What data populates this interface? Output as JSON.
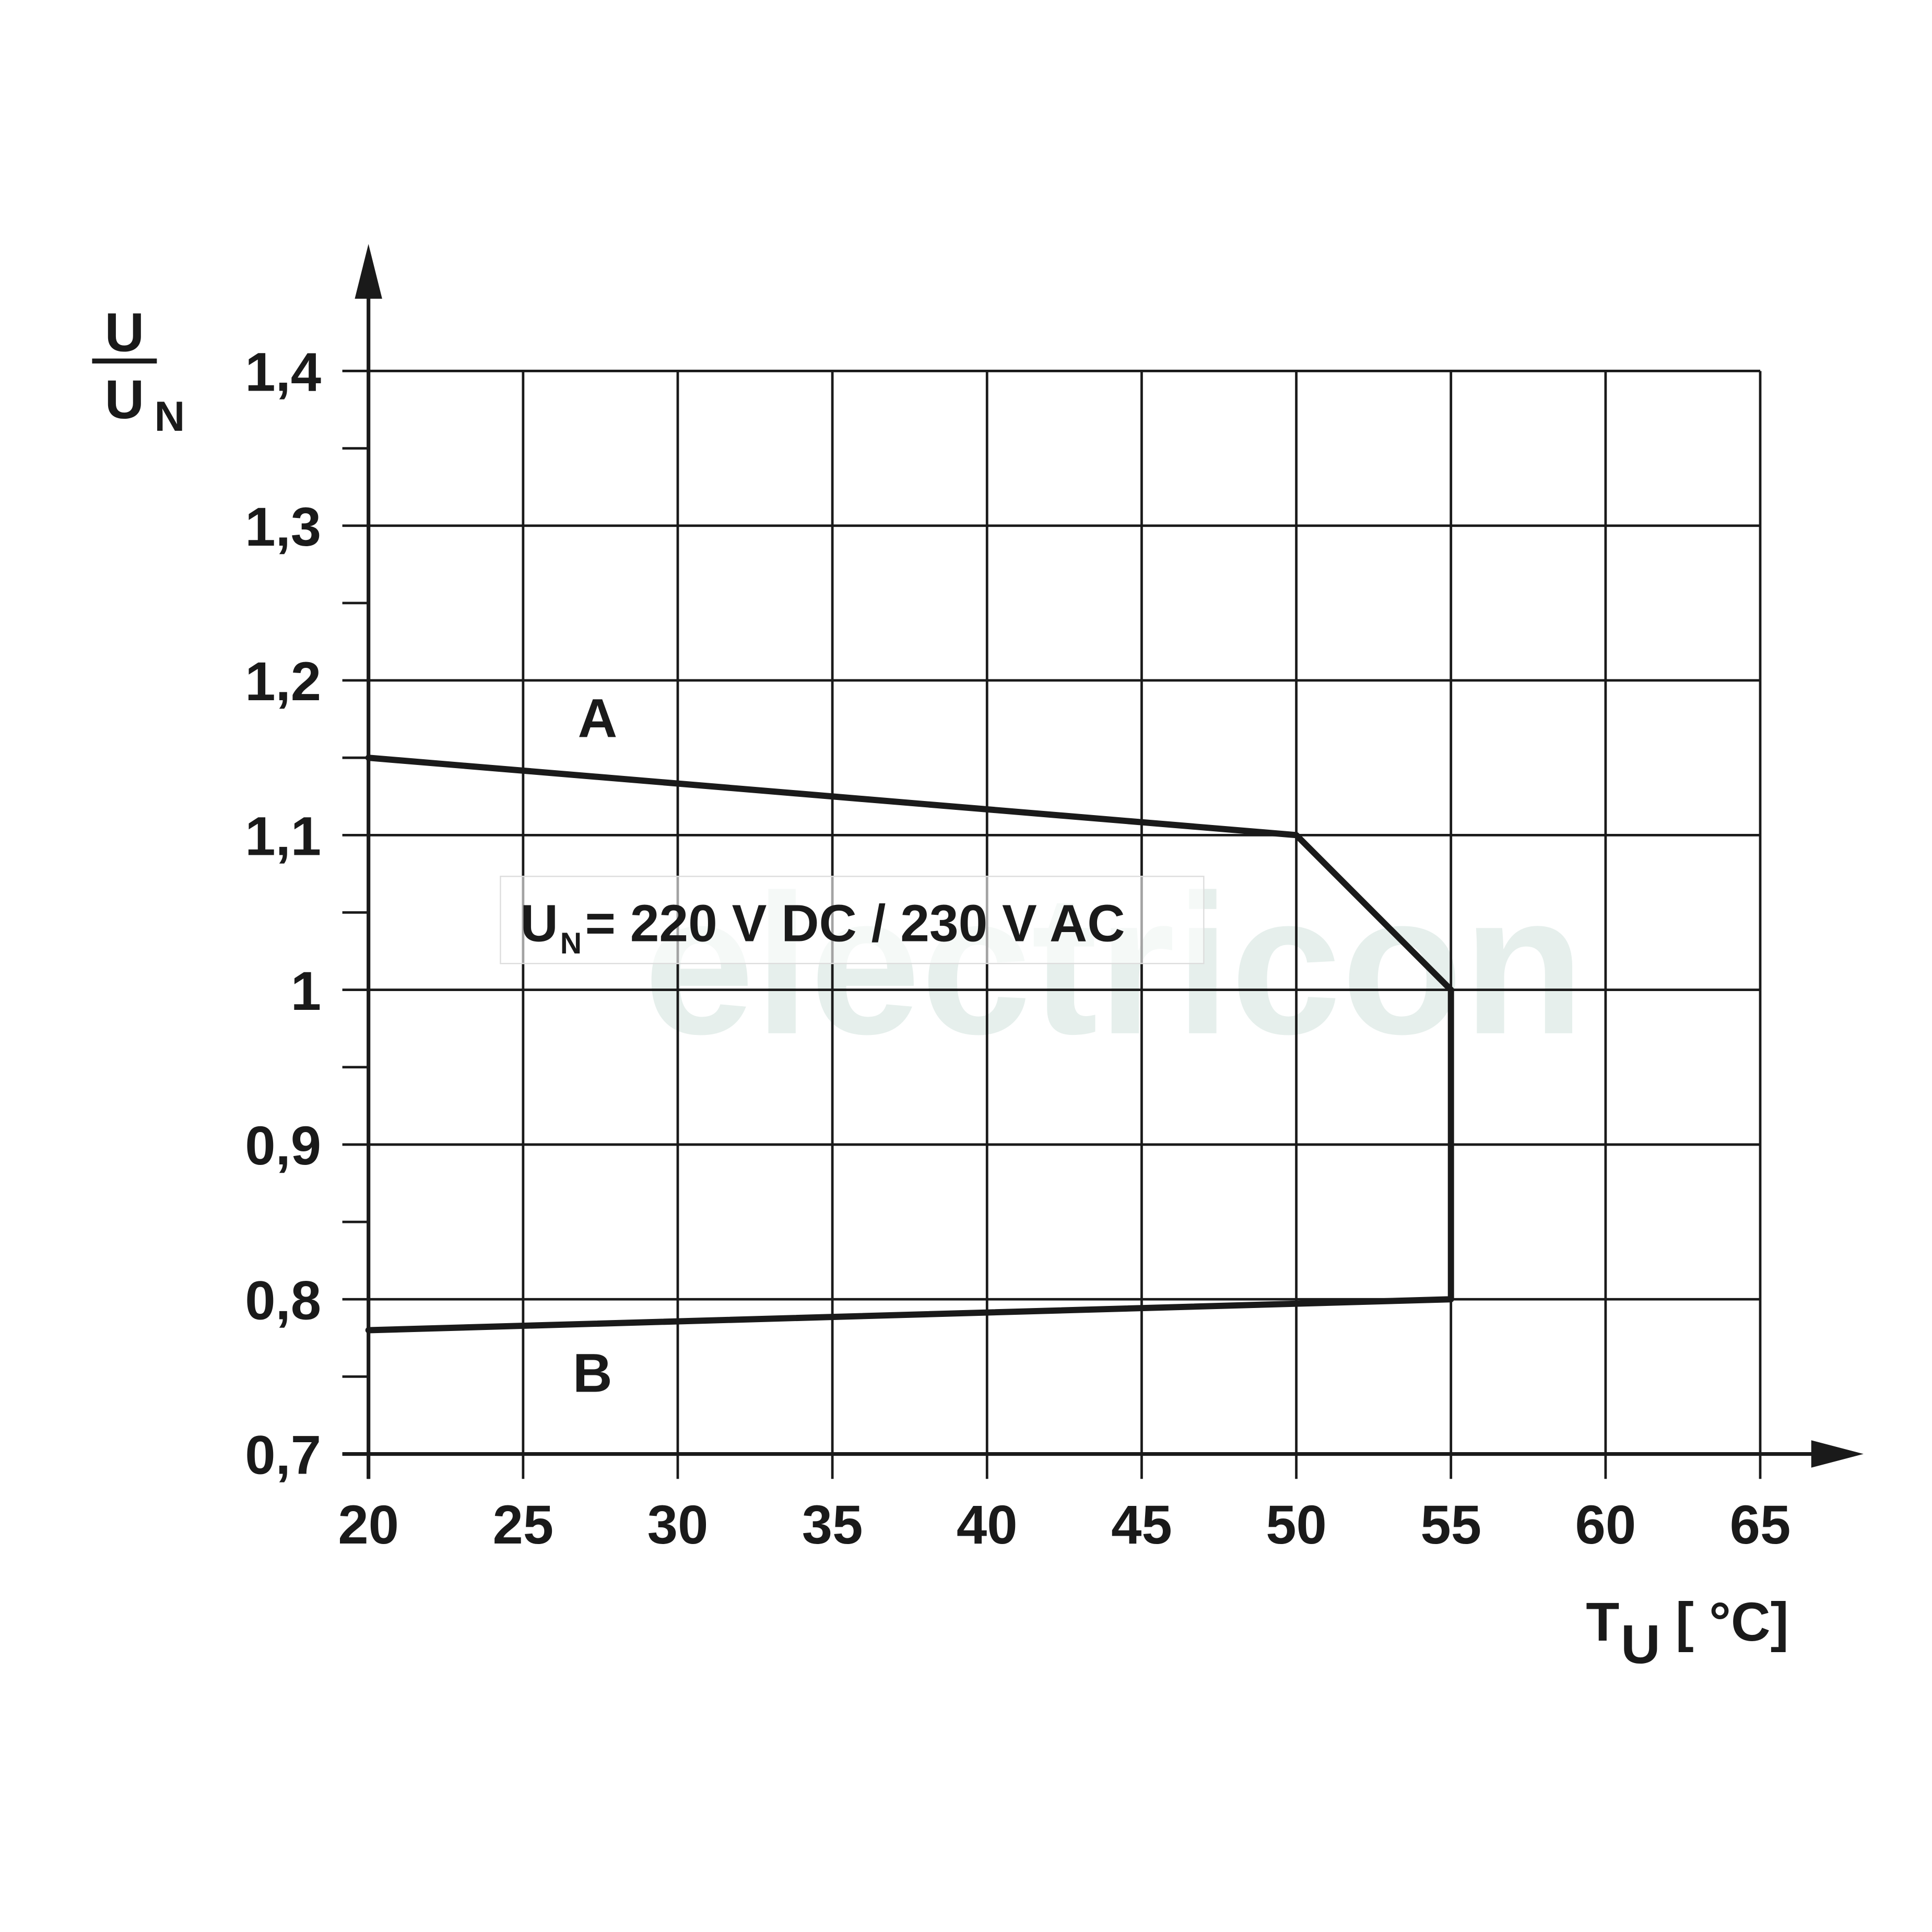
{
  "chart_data": {
    "type": "line",
    "y_label": {
      "numerator": "U",
      "denominator": "U",
      "denominator_sub": "N"
    },
    "x_label": {
      "text": "T",
      "sub": "U",
      "unit": "[ °C]"
    },
    "annotation": {
      "text": "U",
      "sub": "N",
      "rest": "= 220 V DC / 230 V AC"
    },
    "curve_labels": [
      "A",
      "B"
    ],
    "watermark": "electricon",
    "series": [
      {
        "color": "#1a1a1a",
        "x": [
          20,
          50,
          55,
          55,
          20
        ],
        "values": [
          1.15,
          1.1,
          1.0,
          0.8,
          0.78
        ]
      }
    ],
    "xlim": [
      20,
      65
    ],
    "ylim": [
      0.7,
      1.4
    ],
    "xticks": [
      20,
      25,
      30,
      35,
      40,
      45,
      50,
      55,
      60,
      65
    ],
    "yticks": [
      {
        "value": 0.7,
        "label": "0,7"
      },
      {
        "value": 0.8,
        "label": "0,8"
      },
      {
        "value": 0.9,
        "label": "0,9"
      },
      1,
      {
        "value": 1.1,
        "label": "1,1"
      },
      {
        "value": 1.2,
        "label": "1,2"
      },
      {
        "value": 1.3,
        "label": "1,3"
      },
      {
        "value": 1.4,
        "label": "1,4"
      }
    ],
    "yminorticks": [
      0.75,
      0.85,
      0.95,
      1.05,
      1.15,
      1.25,
      1.35
    ],
    "grid": true
  }
}
